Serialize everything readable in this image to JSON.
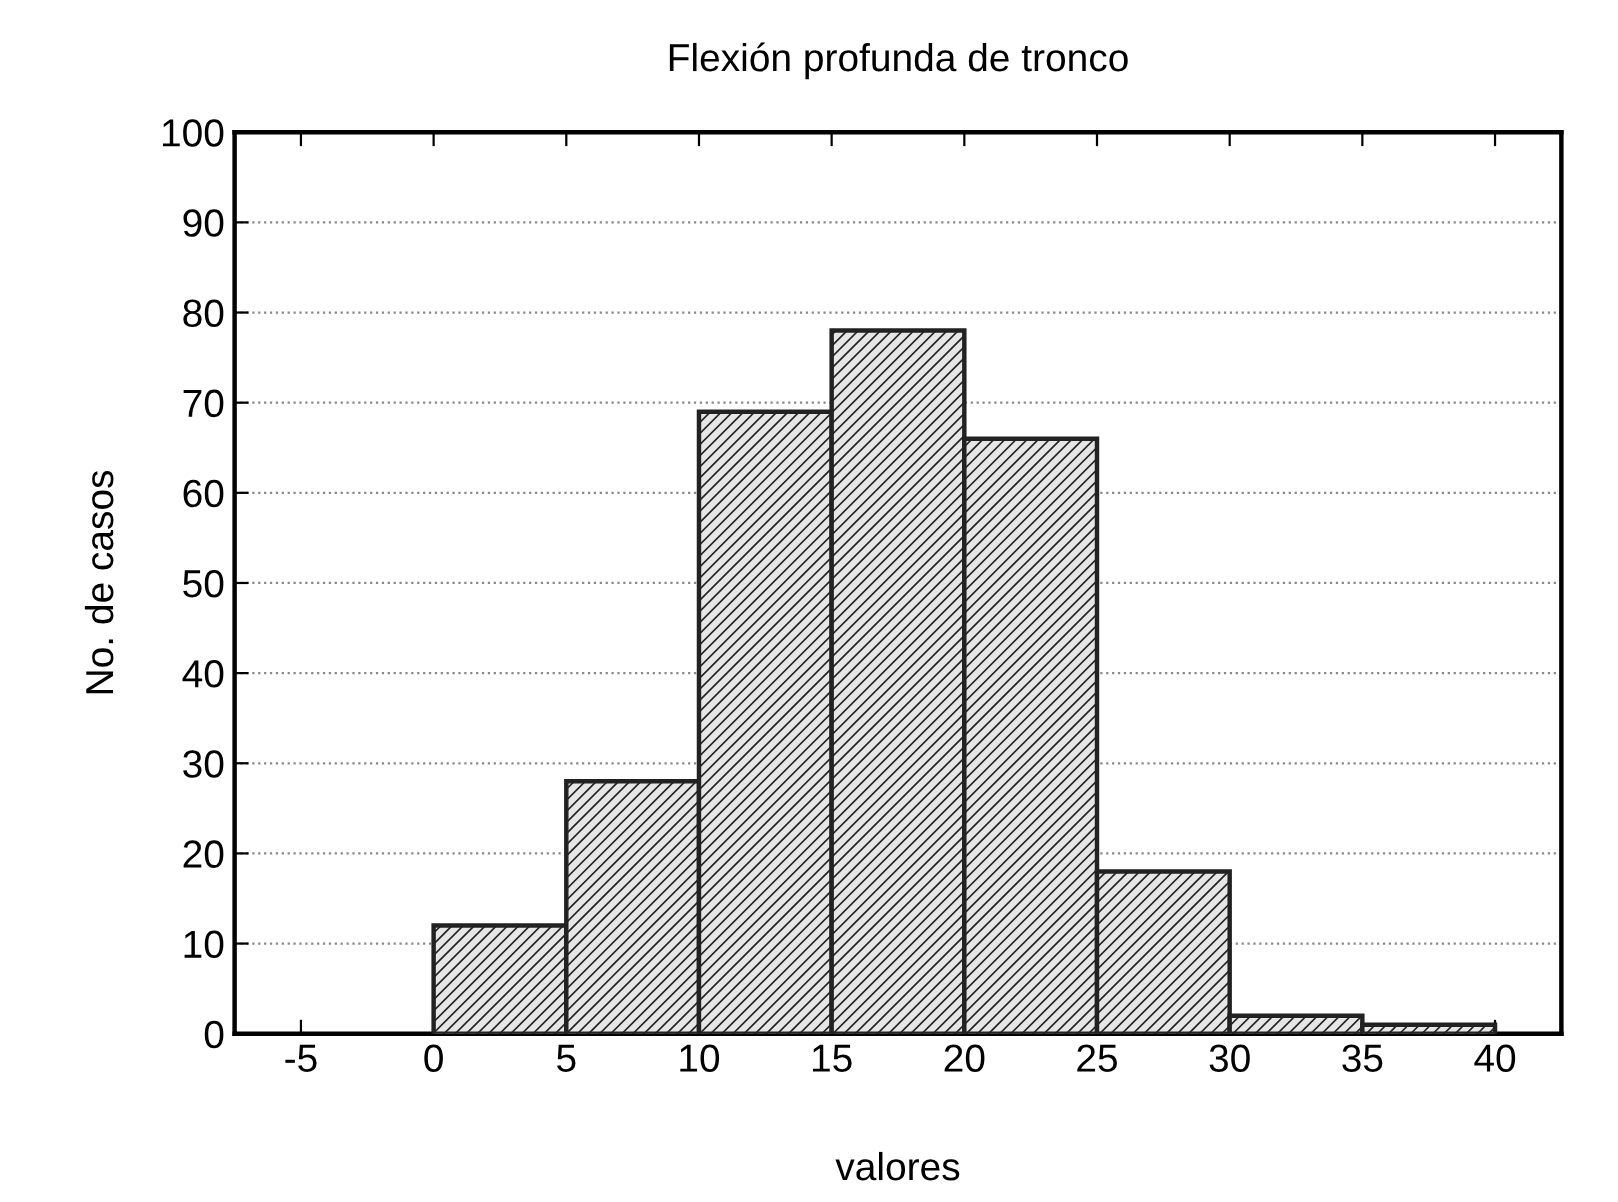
{
  "chart_data": {
    "type": "histogram",
    "title": "Flexión profunda de tronco",
    "xlabel": "valores",
    "ylabel": "No. de casos",
    "bins": [
      0,
      5,
      10,
      15,
      20,
      25,
      30,
      35,
      40
    ],
    "values": [
      12,
      28,
      69,
      78,
      66,
      18,
      2,
      1
    ],
    "color": "#222222",
    "xlim": [
      -7.5,
      42.5
    ],
    "xticks": [
      -5,
      0,
      5,
      10,
      15,
      20,
      25,
      30,
      35,
      40
    ],
    "ylim": [
      0,
      100
    ],
    "yticks": [
      0,
      10,
      20,
      30,
      40,
      50,
      60,
      70,
      80,
      90,
      100
    ],
    "grid": "y"
  }
}
